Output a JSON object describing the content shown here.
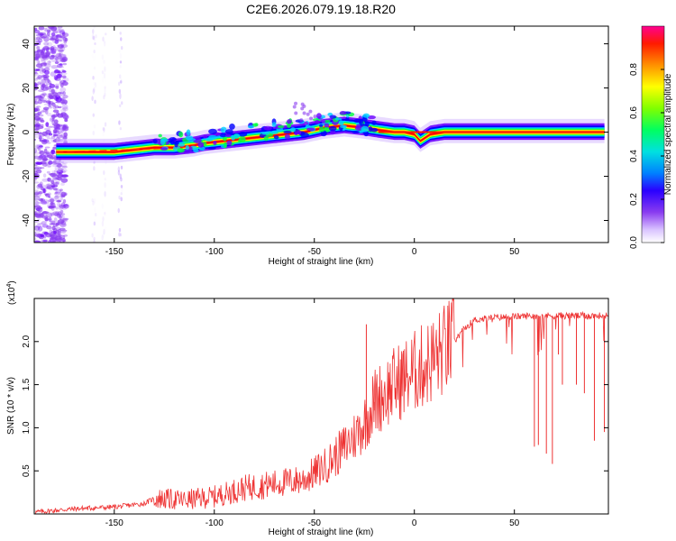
{
  "title": "C2E6.2026.079.19.18.R20",
  "chart_data": [
    {
      "type": "heatmap",
      "panel": "top",
      "xlabel": "Height of straight line (km)",
      "ylabel": "Frequency (Hz)",
      "xlim": [
        -190,
        97
      ],
      "ylim": [
        -50,
        48
      ],
      "xticks": [
        -150,
        -100,
        -50,
        0,
        50
      ],
      "yticks": [
        -40,
        -20,
        0,
        20,
        40
      ],
      "colorbar": {
        "label": "Normalized spectral amplitude",
        "range": [
          0,
          1
        ],
        "ticks": [
          0.0,
          0.2,
          0.4,
          0.6,
          0.8
        ]
      },
      "ridge": {
        "x": [
          -179,
          -165,
          -150,
          -140,
          -130,
          -120,
          -110,
          -105,
          -95,
          -85,
          -75,
          -65,
          -55,
          -45,
          -35,
          -25,
          -18,
          -10,
          -5,
          0,
          3,
          8,
          15,
          30,
          50,
          70,
          95
        ],
        "freq": [
          -9,
          -9,
          -9,
          -8,
          -7,
          -7,
          -6,
          -5,
          -4,
          -3,
          -2,
          -1,
          0,
          2,
          3,
          2,
          1,
          0,
          0,
          -1,
          -4,
          -1,
          0,
          0,
          0,
          0,
          0
        ]
      },
      "colors": {
        "background": "#ffffff",
        "noise": "#8a3cf0",
        "ridge_stops": [
          "#ffffff",
          "#c9a8ff",
          "#6a00ff",
          "#0000ff",
          "#00e0ff",
          "#00ff40",
          "#ffff00",
          "#ff8000",
          "#ff0000",
          "#ff0080"
        ]
      }
    },
    {
      "type": "line",
      "panel": "bottom",
      "xlabel": "Height of straight line (km)",
      "ylabel": "SNR (10 * v/v)",
      "yscale_label": "(x10",
      "yscale_exp": "4",
      "yscale_close": ")",
      "xlim": [
        -190,
        97
      ],
      "ylim": [
        0,
        2.5
      ],
      "xticks": [
        -150,
        -100,
        -50,
        0,
        50
      ],
      "yticks": [
        0.5,
        1.0,
        1.5,
        2.0
      ],
      "ytick_labels": [
        "0.5",
        "1.0",
        "1.5",
        "2.0"
      ],
      "series": [
        {
          "name": "SNR",
          "color": "#ee3333",
          "trend_x": [
            -190,
            -170,
            -150,
            -135,
            -130,
            -115,
            -100,
            -85,
            -70,
            -55,
            -45,
            -38,
            -30,
            -25,
            -20,
            -10,
            0,
            10,
            20,
            25,
            30,
            40,
            60,
            80,
            97
          ],
          "trend_y": [
            0.02,
            0.06,
            0.08,
            0.12,
            0.18,
            0.16,
            0.2,
            0.3,
            0.35,
            0.4,
            0.55,
            0.7,
            0.9,
            1.05,
            1.3,
            1.5,
            1.65,
            1.8,
            2.0,
            2.15,
            2.25,
            2.28,
            2.3,
            2.3,
            2.3
          ],
          "spikes": [
            {
              "x": -24,
              "y": 2.2
            },
            {
              "x": -20,
              "y": 1.2
            },
            {
              "x": 60,
              "y": 0.78
            },
            {
              "x": 62,
              "y": 0.8
            },
            {
              "x": 66,
              "y": 0.7
            },
            {
              "x": 69,
              "y": 0.58
            },
            {
              "x": 72,
              "y": 1.85
            },
            {
              "x": 74,
              "y": 1.5
            },
            {
              "x": 81,
              "y": 1.5
            },
            {
              "x": 85,
              "y": 1.4
            },
            {
              "x": 90,
              "y": 0.85
            },
            {
              "x": 95,
              "y": 0.95
            }
          ]
        }
      ]
    }
  ]
}
